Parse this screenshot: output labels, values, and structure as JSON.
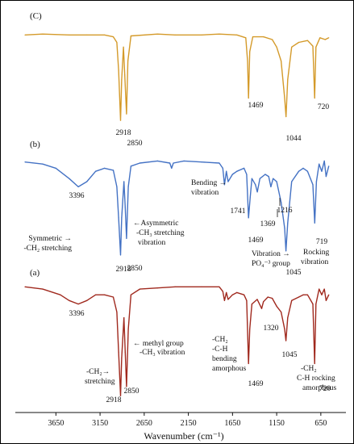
{
  "chart_data": {
    "type": "line",
    "title": "",
    "xlabel": "Wavenumber (cm⁻¹)",
    "ylabel": "",
    "xlim": [
      4000,
      530
    ],
    "x_reversed": true,
    "grid": false,
    "legend": "none",
    "xticks": [
      3650,
      3150,
      2650,
      2150,
      1650,
      1150,
      650
    ],
    "series": [
      {
        "name": "(C)",
        "color": "#d49a2a",
        "points": [
          [
            4000,
            0.98
          ],
          [
            3800,
            0.99
          ],
          [
            3500,
            0.98
          ],
          [
            3300,
            0.98
          ],
          [
            3100,
            0.98
          ],
          [
            3000,
            0.96
          ],
          [
            2960,
            0.9
          ],
          [
            2940,
            0.6
          ],
          [
            2918,
            0.06
          ],
          [
            2905,
            0.5
          ],
          [
            2885,
            0.85
          ],
          [
            2870,
            0.55
          ],
          [
            2850,
            0.13
          ],
          [
            2835,
            0.7
          ],
          [
            2800,
            0.97
          ],
          [
            2500,
            0.99
          ],
          [
            2300,
            0.98
          ],
          [
            2000,
            0.98
          ],
          [
            1800,
            0.99
          ],
          [
            1600,
            0.98
          ],
          [
            1500,
            0.95
          ],
          [
            1480,
            0.7
          ],
          [
            1469,
            0.3
          ],
          [
            1455,
            0.8
          ],
          [
            1420,
            0.96
          ],
          [
            1300,
            0.96
          ],
          [
            1200,
            0.93
          ],
          [
            1150,
            0.85
          ],
          [
            1100,
            0.7
          ],
          [
            1060,
            0.3
          ],
          [
            1044,
            0.1
          ],
          [
            1025,
            0.5
          ],
          [
            980,
            0.85
          ],
          [
            900,
            0.9
          ],
          [
            800,
            0.92
          ],
          [
            740,
            0.86
          ],
          [
            720,
            0.3
          ],
          [
            705,
            0.85
          ],
          [
            660,
            0.95
          ],
          [
            600,
            0.93
          ],
          [
            560,
            0.95
          ]
        ]
      },
      {
        "name": "(b)",
        "color": "#4472c4",
        "points": [
          [
            4000,
            0.94
          ],
          [
            3800,
            0.92
          ],
          [
            3650,
            0.88
          ],
          [
            3500,
            0.78
          ],
          [
            3396,
            0.7
          ],
          [
            3300,
            0.75
          ],
          [
            3200,
            0.85
          ],
          [
            3100,
            0.88
          ],
          [
            3000,
            0.86
          ],
          [
            2960,
            0.7
          ],
          [
            2940,
            0.4
          ],
          [
            2918,
            0.04
          ],
          [
            2905,
            0.4
          ],
          [
            2880,
            0.75
          ],
          [
            2865,
            0.5
          ],
          [
            2850,
            0.2
          ],
          [
            2830,
            0.7
          ],
          [
            2800,
            0.9
          ],
          [
            2700,
            0.93
          ],
          [
            2500,
            0.95
          ],
          [
            2360,
            0.93
          ],
          [
            2340,
            0.88
          ],
          [
            2320,
            0.93
          ],
          [
            2200,
            0.95
          ],
          [
            2000,
            0.94
          ],
          [
            1800,
            0.93
          ],
          [
            1760,
            0.88
          ],
          [
            1741,
            0.72
          ],
          [
            1720,
            0.85
          ],
          [
            1700,
            0.75
          ],
          [
            1650,
            0.82
          ],
          [
            1600,
            0.85
          ],
          [
            1520,
            0.88
          ],
          [
            1490,
            0.82
          ],
          [
            1469,
            0.4
          ],
          [
            1450,
            0.6
          ],
          [
            1430,
            0.78
          ],
          [
            1390,
            0.72
          ],
          [
            1369,
            0.65
          ],
          [
            1340,
            0.78
          ],
          [
            1280,
            0.82
          ],
          [
            1240,
            0.8
          ],
          [
            1216,
            0.7
          ],
          [
            1190,
            0.78
          ],
          [
            1150,
            0.75
          ],
          [
            1100,
            0.55
          ],
          [
            1060,
            0.3
          ],
          [
            1045,
            0.08
          ],
          [
            1025,
            0.35
          ],
          [
            980,
            0.75
          ],
          [
            900,
            0.85
          ],
          [
            850,
            0.88
          ],
          [
            800,
            0.85
          ],
          [
            740,
            0.72
          ],
          [
            719,
            0.35
          ],
          [
            700,
            0.75
          ],
          [
            670,
            0.92
          ],
          [
            640,
            0.85
          ],
          [
            610,
            0.95
          ],
          [
            590,
            0.8
          ],
          [
            560,
            0.9
          ]
        ]
      },
      {
        "name": "(a)",
        "color": "#a0291e",
        "points": [
          [
            4000,
            0.97
          ],
          [
            3800,
            0.95
          ],
          [
            3600,
            0.9
          ],
          [
            3500,
            0.85
          ],
          [
            3396,
            0.82
          ],
          [
            3300,
            0.85
          ],
          [
            3200,
            0.9
          ],
          [
            3100,
            0.9
          ],
          [
            3000,
            0.88
          ],
          [
            2960,
            0.75
          ],
          [
            2940,
            0.4
          ],
          [
            2918,
            0.02
          ],
          [
            2905,
            0.35
          ],
          [
            2880,
            0.7
          ],
          [
            2865,
            0.4
          ],
          [
            2850,
            0.1
          ],
          [
            2830,
            0.6
          ],
          [
            2800,
            0.9
          ],
          [
            2700,
            0.95
          ],
          [
            2500,
            0.96
          ],
          [
            2300,
            0.97
          ],
          [
            2000,
            0.97
          ],
          [
            1800,
            0.97
          ],
          [
            1760,
            0.93
          ],
          [
            1741,
            0.85
          ],
          [
            1720,
            0.92
          ],
          [
            1700,
            0.86
          ],
          [
            1650,
            0.9
          ],
          [
            1600,
            0.92
          ],
          [
            1520,
            0.9
          ],
          [
            1490,
            0.85
          ],
          [
            1469,
            0.3
          ],
          [
            1455,
            0.6
          ],
          [
            1430,
            0.82
          ],
          [
            1370,
            0.86
          ],
          [
            1320,
            0.78
          ],
          [
            1300,
            0.84
          ],
          [
            1250,
            0.88
          ],
          [
            1200,
            0.87
          ],
          [
            1150,
            0.8
          ],
          [
            1100,
            0.75
          ],
          [
            1060,
            0.6
          ],
          [
            1045,
            0.5
          ],
          [
            1025,
            0.7
          ],
          [
            980,
            0.85
          ],
          [
            900,
            0.88
          ],
          [
            850,
            0.9
          ],
          [
            800,
            0.9
          ],
          [
            740,
            0.82
          ],
          [
            720,
            0.3
          ],
          [
            705,
            0.82
          ],
          [
            670,
            0.95
          ],
          [
            640,
            0.9
          ],
          [
            610,
            0.95
          ],
          [
            590,
            0.85
          ],
          [
            560,
            0.9
          ]
        ]
      }
    ],
    "panels": [
      {
        "label": "(C)",
        "series": "(C)"
      },
      {
        "label": "(b)",
        "series": "(b)"
      },
      {
        "label": "(a)",
        "series": "(a)"
      }
    ],
    "annotations": [
      {
        "series": "(C)",
        "x": 2918,
        "text": "2918"
      },
      {
        "series": "(C)",
        "x": 2850,
        "text": "2850"
      },
      {
        "series": "(C)",
        "x": 1469,
        "text": "1469"
      },
      {
        "series": "(C)",
        "x": 1044,
        "text": "1044"
      },
      {
        "series": "(C)",
        "x": 720,
        "text": "720"
      },
      {
        "series": "(b)",
        "x": 3396,
        "text": "3396"
      },
      {
        "series": "(b)",
        "x": 2918,
        "text": "2918"
      },
      {
        "series": "(b)",
        "x": 2850,
        "text": "2850"
      },
      {
        "series": "(b)",
        "x": 1741,
        "text": "1741"
      },
      {
        "series": "(b)",
        "x": 1469,
        "text": "1469"
      },
      {
        "series": "(b)",
        "x": 1369,
        "text": "1369"
      },
      {
        "series": "(b)",
        "x": 1216,
        "text": "1216"
      },
      {
        "series": "(b)",
        "x": 1045,
        "text": "1045"
      },
      {
        "series": "(b)",
        "x": 719,
        "text": "719"
      },
      {
        "series": "(b)",
        "text": "Symmetric →"
      },
      {
        "series": "(b)",
        "text": "-CH₂ stretching"
      },
      {
        "series": "(b)",
        "text": "←Asymmetric"
      },
      {
        "series": "(b)",
        "text": "-CH₃ stretching"
      },
      {
        "series": "(b)",
        "text": "vibration"
      },
      {
        "series": "(b)",
        "text": "Bending →"
      },
      {
        "series": "(b)",
        "text": "vibration"
      },
      {
        "series": "(b)",
        "text": "Vibration →"
      },
      {
        "series": "(b)",
        "text": "PO₄⁻³ group"
      },
      {
        "series": "(b)",
        "text": "Rocking"
      },
      {
        "series": "(b)",
        "text": "vibration"
      },
      {
        "series": "(a)",
        "x": 3396,
        "text": "3396"
      },
      {
        "series": "(a)",
        "x": 2918,
        "text": "2918"
      },
      {
        "series": "(a)",
        "x": 2850,
        "text": "2850"
      },
      {
        "series": "(a)",
        "x": 1469,
        "text": "1469"
      },
      {
        "series": "(a)",
        "x": 1320,
        "text": "1320"
      },
      {
        "series": "(a)",
        "x": 1045,
        "text": "1045"
      },
      {
        "series": "(a)",
        "x": 720,
        "text": "720"
      },
      {
        "series": "(a)",
        "text": "← methyl group"
      },
      {
        "series": "(a)",
        "text": "-CH₃ vibration"
      },
      {
        "series": "(a)",
        "text": "-CH₂→"
      },
      {
        "series": "(a)",
        "text": "stretching"
      },
      {
        "series": "(a)",
        "text": "-CH₂"
      },
      {
        "series": "(a)",
        "text": "-C-H"
      },
      {
        "series": "(a)",
        "text": "bending"
      },
      {
        "series": "(a)",
        "text": "amorphous"
      },
      {
        "series": "(a)",
        "text": "-CH₂"
      },
      {
        "series": "(a)",
        "text": "C-H rocking"
      },
      {
        "series": "(a)",
        "text": "amorphous"
      }
    ]
  }
}
